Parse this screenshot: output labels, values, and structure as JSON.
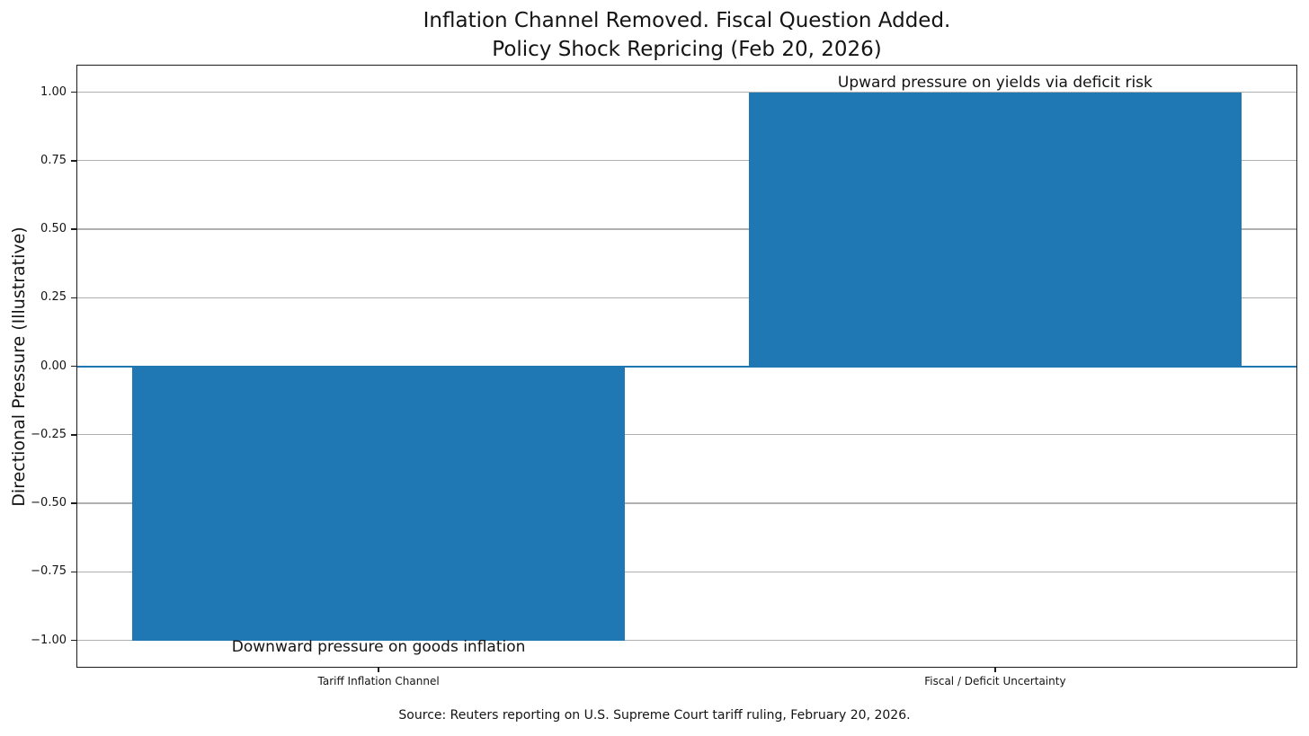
{
  "chart_data": {
    "type": "bar",
    "title_line1": "Inflation Channel Removed. Fiscal Question Added.",
    "title_line2": "Policy Shock Repricing (Feb 20, 2026)",
    "ylabel": "Directional Pressure (Illustrative)",
    "xlabel": "",
    "categories": [
      "Tariff Inflation Channel",
      "Fiscal / Deficit Uncertainty"
    ],
    "values": [
      -1.0,
      1.0
    ],
    "ylim": [
      -1.1,
      1.1
    ],
    "ytick_values": [
      1.0,
      0.75,
      0.5,
      0.25,
      0.0,
      -0.25,
      -0.5,
      -0.75,
      -1.0
    ],
    "ytick_labels": [
      "1.00",
      "0.75",
      "0.50",
      "0.25",
      "0.00",
      "−0.25",
      "−0.50",
      "−0.75",
      "−1.00"
    ],
    "grid": true,
    "legend_position": "none",
    "bar_color": "#1f77b4",
    "zero_line_color": "#1f77b4",
    "grid_color": "#b0b0b0",
    "annotations": [
      {
        "text": "Downward pressure on goods inflation",
        "category_index": 0,
        "position": "below_bar"
      },
      {
        "text": "Upward pressure on yields via deficit risk",
        "category_index": 1,
        "position": "above_bar"
      }
    ],
    "source_note": "Source: Reuters reporting on U.S. Supreme Court tariff ruling, February 20, 2026."
  }
}
